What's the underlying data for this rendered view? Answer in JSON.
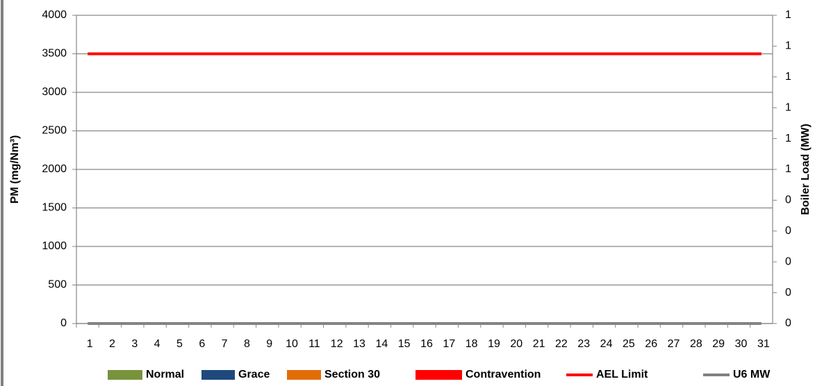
{
  "chart_data": {
    "type": "bar",
    "y_label": "PM (mg/Nm³)",
    "y2_label": "Boiler Load (MW)",
    "categories": [
      "1",
      "2",
      "3",
      "4",
      "5",
      "6",
      "7",
      "8",
      "9",
      "10",
      "11",
      "12",
      "13",
      "14",
      "15",
      "16",
      "17",
      "18",
      "19",
      "20",
      "21",
      "22",
      "23",
      "24",
      "25",
      "26",
      "27",
      "28",
      "29",
      "30",
      "31"
    ],
    "ylim": [
      0,
      4000
    ],
    "yticks": [
      0,
      500,
      1000,
      1500,
      2000,
      2500,
      3000,
      3500,
      4000
    ],
    "y2lim": [
      0,
      1
    ],
    "y2ticks": [
      {
        "value": 0,
        "label": "0"
      },
      {
        "value": 0.1,
        "label": "0"
      },
      {
        "value": 0.2,
        "label": "0"
      },
      {
        "value": 0.3,
        "label": "0"
      },
      {
        "value": 0.4,
        "label": "0"
      },
      {
        "value": 0.5,
        "label": "1"
      },
      {
        "value": 0.6,
        "label": "1"
      },
      {
        "value": 0.7,
        "label": "1"
      },
      {
        "value": 0.8,
        "label": "1"
      },
      {
        "value": 0.9,
        "label": "1"
      },
      {
        "value": 1,
        "label": "1"
      }
    ],
    "grid": true,
    "legend": "bottom",
    "series": [
      {
        "name": "Normal",
        "kind": "bar",
        "color": "#77933c",
        "values": [
          0,
          0,
          0,
          0,
          0,
          0,
          0,
          0,
          0,
          0,
          0,
          0,
          0,
          0,
          0,
          0,
          0,
          0,
          0,
          0,
          0,
          0,
          0,
          0,
          0,
          0,
          0,
          0,
          0,
          0,
          0
        ]
      },
      {
        "name": "Grace",
        "kind": "bar",
        "color": "#1f497d",
        "values": [
          0,
          0,
          0,
          0,
          0,
          0,
          0,
          0,
          0,
          0,
          0,
          0,
          0,
          0,
          0,
          0,
          0,
          0,
          0,
          0,
          0,
          0,
          0,
          0,
          0,
          0,
          0,
          0,
          0,
          0,
          0
        ]
      },
      {
        "name": "Section 30",
        "kind": "bar",
        "color": "#e36c09",
        "values": [
          0,
          0,
          0,
          0,
          0,
          0,
          0,
          0,
          0,
          0,
          0,
          0,
          0,
          0,
          0,
          0,
          0,
          0,
          0,
          0,
          0,
          0,
          0,
          0,
          0,
          0,
          0,
          0,
          0,
          0,
          0
        ]
      },
      {
        "name": "Contravention",
        "kind": "bar",
        "color": "#ff0000",
        "values": [
          0,
          0,
          0,
          0,
          0,
          0,
          0,
          0,
          0,
          0,
          0,
          0,
          0,
          0,
          0,
          0,
          0,
          0,
          0,
          0,
          0,
          0,
          0,
          0,
          0,
          0,
          0,
          0,
          0,
          0,
          0
        ]
      },
      {
        "name": "AEL Limit",
        "kind": "line",
        "color": "#ff0000",
        "values": [
          3500,
          3500,
          3500,
          3500,
          3500,
          3500,
          3500,
          3500,
          3500,
          3500,
          3500,
          3500,
          3500,
          3500,
          3500,
          3500,
          3500,
          3500,
          3500,
          3500,
          3500,
          3500,
          3500,
          3500,
          3500,
          3500,
          3500,
          3500,
          3500,
          3500,
          3500
        ]
      },
      {
        "name": "U6 MW",
        "kind": "line",
        "axis": "y2",
        "color": "#808080",
        "values": [
          0,
          0,
          0,
          0,
          0,
          0,
          0,
          0,
          0,
          0,
          0,
          0,
          0,
          0,
          0,
          0,
          0,
          0,
          0,
          0,
          0,
          0,
          0,
          0,
          0,
          0,
          0,
          0,
          0,
          0,
          0
        ]
      }
    ]
  }
}
